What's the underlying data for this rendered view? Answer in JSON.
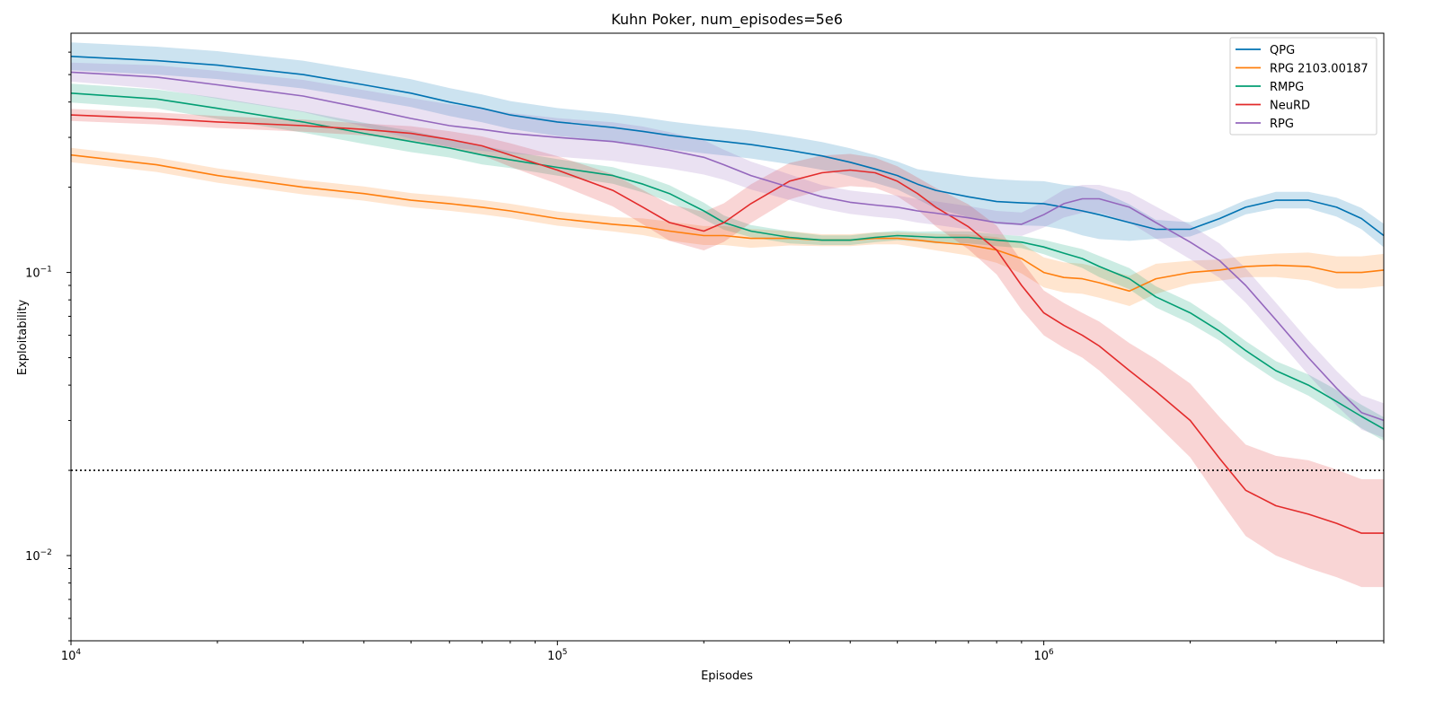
{
  "chart_data": {
    "type": "line",
    "title": "Kuhn Poker, num_episodes=5e6",
    "xlabel": "Episodes",
    "ylabel": "Exploitability",
    "xscale": "log",
    "yscale": "log",
    "xlim": [
      10000,
      5000000
    ],
    "ylim": [
      0.005,
      0.7
    ],
    "x_ticks": [
      {
        "value": 10000,
        "base": "10",
        "exp": "4"
      },
      {
        "value": 100000,
        "base": "10",
        "exp": "5"
      },
      {
        "value": 1000000,
        "base": "10",
        "exp": "6"
      }
    ],
    "y_ticks": [
      {
        "value": 0.1,
        "base": "10",
        "exp": "−1"
      },
      {
        "value": 0.01,
        "base": "10",
        "exp": "−2"
      }
    ],
    "grid": false,
    "legend_position": "top-right",
    "reference_line": {
      "y": 0.02,
      "style": "dotted",
      "color": "#000000"
    },
    "x": [
      10000,
      15000,
      20000,
      30000,
      40000,
      50000,
      60000,
      70000,
      80000,
      100000,
      130000,
      150000,
      170000,
      200000,
      220000,
      250000,
      300000,
      350000,
      400000,
      450000,
      500000,
      550000,
      600000,
      700000,
      800000,
      900000,
      1000000,
      1100000,
      1200000,
      1300000,
      1500000,
      1700000,
      2000000,
      2300000,
      2600000,
      3000000,
      3500000,
      4000000,
      4500000,
      5000000
    ],
    "series": [
      {
        "name": "QPG",
        "color": "#0173b2",
        "values": [
          0.58,
          0.56,
          0.54,
          0.5,
          0.46,
          0.43,
          0.4,
          0.38,
          0.36,
          0.34,
          0.325,
          0.315,
          0.305,
          0.295,
          0.29,
          0.283,
          0.27,
          0.258,
          0.245,
          0.232,
          0.22,
          0.205,
          0.195,
          0.185,
          0.178,
          0.176,
          0.175,
          0.17,
          0.165,
          0.16,
          0.15,
          0.142,
          0.142,
          0.155,
          0.17,
          0.18,
          0.18,
          0.17,
          0.155,
          0.135
        ],
        "band": [
          0.12,
          0.12,
          0.12,
          0.12,
          0.12,
          0.12,
          0.12,
          0.12,
          0.12,
          0.12,
          0.12,
          0.12,
          0.12,
          0.12,
          0.12,
          0.12,
          0.12,
          0.12,
          0.12,
          0.12,
          0.12,
          0.13,
          0.16,
          0.18,
          0.2,
          0.2,
          0.2,
          0.2,
          0.22,
          0.22,
          0.16,
          0.08,
          0.06,
          0.06,
          0.06,
          0.07,
          0.07,
          0.08,
          0.09,
          0.1
        ]
      },
      {
        "name": "RPG 2103.00187",
        "color": "#ff7f0e",
        "values": [
          0.26,
          0.24,
          0.22,
          0.2,
          0.19,
          0.18,
          0.175,
          0.17,
          0.165,
          0.155,
          0.148,
          0.145,
          0.14,
          0.135,
          0.135,
          0.132,
          0.132,
          0.13,
          0.13,
          0.132,
          0.132,
          0.13,
          0.128,
          0.125,
          0.12,
          0.112,
          0.1,
          0.096,
          0.095,
          0.092,
          0.086,
          0.095,
          0.1,
          0.102,
          0.105,
          0.106,
          0.105,
          0.1,
          0.1,
          0.102
        ],
        "band": [
          0.06,
          0.06,
          0.06,
          0.06,
          0.06,
          0.06,
          0.06,
          0.06,
          0.06,
          0.06,
          0.06,
          0.07,
          0.08,
          0.08,
          0.08,
          0.08,
          0.06,
          0.05,
          0.05,
          0.05,
          0.05,
          0.06,
          0.07,
          0.09,
          0.11,
          0.13,
          0.13,
          0.13,
          0.13,
          0.13,
          0.13,
          0.13,
          0.1,
          0.09,
          0.09,
          0.1,
          0.12,
          0.14,
          0.14,
          0.14
        ]
      },
      {
        "name": "RMPG",
        "color": "#029e73",
        "values": [
          0.43,
          0.41,
          0.38,
          0.34,
          0.31,
          0.29,
          0.275,
          0.26,
          0.25,
          0.235,
          0.22,
          0.205,
          0.19,
          0.165,
          0.15,
          0.14,
          0.133,
          0.13,
          0.13,
          0.133,
          0.135,
          0.134,
          0.133,
          0.133,
          0.13,
          0.128,
          0.123,
          0.117,
          0.112,
          0.105,
          0.095,
          0.082,
          0.072,
          0.062,
          0.053,
          0.045,
          0.04,
          0.035,
          0.031,
          0.028
        ],
        "band": [
          0.08,
          0.08,
          0.09,
          0.09,
          0.09,
          0.09,
          0.08,
          0.08,
          0.07,
          0.07,
          0.07,
          0.07,
          0.07,
          0.07,
          0.06,
          0.05,
          0.05,
          0.04,
          0.04,
          0.04,
          0.04,
          0.04,
          0.05,
          0.05,
          0.05,
          0.05,
          0.06,
          0.07,
          0.08,
          0.09,
          0.09,
          0.09,
          0.09,
          0.08,
          0.08,
          0.08,
          0.09,
          0.1,
          0.1,
          0.1
        ]
      },
      {
        "name": "NeuRD",
        "color": "#e32b2b",
        "values": [
          0.36,
          0.35,
          0.34,
          0.33,
          0.32,
          0.31,
          0.295,
          0.28,
          0.26,
          0.23,
          0.195,
          0.17,
          0.15,
          0.14,
          0.15,
          0.175,
          0.21,
          0.225,
          0.23,
          0.225,
          0.21,
          0.19,
          0.17,
          0.145,
          0.12,
          0.09,
          0.072,
          0.065,
          0.06,
          0.055,
          0.045,
          0.038,
          0.03,
          0.022,
          0.017,
          0.015,
          0.014,
          0.013,
          0.012,
          0.012
        ],
        "band": [
          0.05,
          0.05,
          0.05,
          0.05,
          0.05,
          0.06,
          0.07,
          0.08,
          0.1,
          0.12,
          0.14,
          0.15,
          0.16,
          0.17,
          0.17,
          0.17,
          0.16,
          0.15,
          0.14,
          0.13,
          0.13,
          0.14,
          0.17,
          0.2,
          0.22,
          0.22,
          0.2,
          0.2,
          0.2,
          0.22,
          0.25,
          0.3,
          0.35,
          0.4,
          0.45,
          0.5,
          0.55,
          0.55,
          0.55,
          0.55
        ]
      },
      {
        "name": "RPG",
        "color": "#9467bd",
        "values": [
          0.51,
          0.49,
          0.46,
          0.42,
          0.38,
          0.35,
          0.33,
          0.32,
          0.31,
          0.3,
          0.29,
          0.28,
          0.27,
          0.255,
          0.24,
          0.22,
          0.2,
          0.185,
          0.177,
          0.173,
          0.17,
          0.165,
          0.162,
          0.156,
          0.15,
          0.148,
          0.16,
          0.175,
          0.182,
          0.182,
          0.17,
          0.15,
          0.128,
          0.11,
          0.09,
          0.068,
          0.05,
          0.039,
          0.032,
          0.03
        ],
        "band": [
          0.08,
          0.1,
          0.12,
          0.14,
          0.16,
          0.18,
          0.19,
          0.19,
          0.18,
          0.17,
          0.17,
          0.17,
          0.16,
          0.15,
          0.13,
          0.12,
          0.11,
          0.1,
          0.1,
          0.1,
          0.1,
          0.1,
          0.1,
          0.1,
          0.1,
          0.1,
          0.11,
          0.12,
          0.12,
          0.12,
          0.13,
          0.14,
          0.15,
          0.15,
          0.15,
          0.15,
          0.15,
          0.15,
          0.15,
          0.15
        ]
      }
    ]
  }
}
